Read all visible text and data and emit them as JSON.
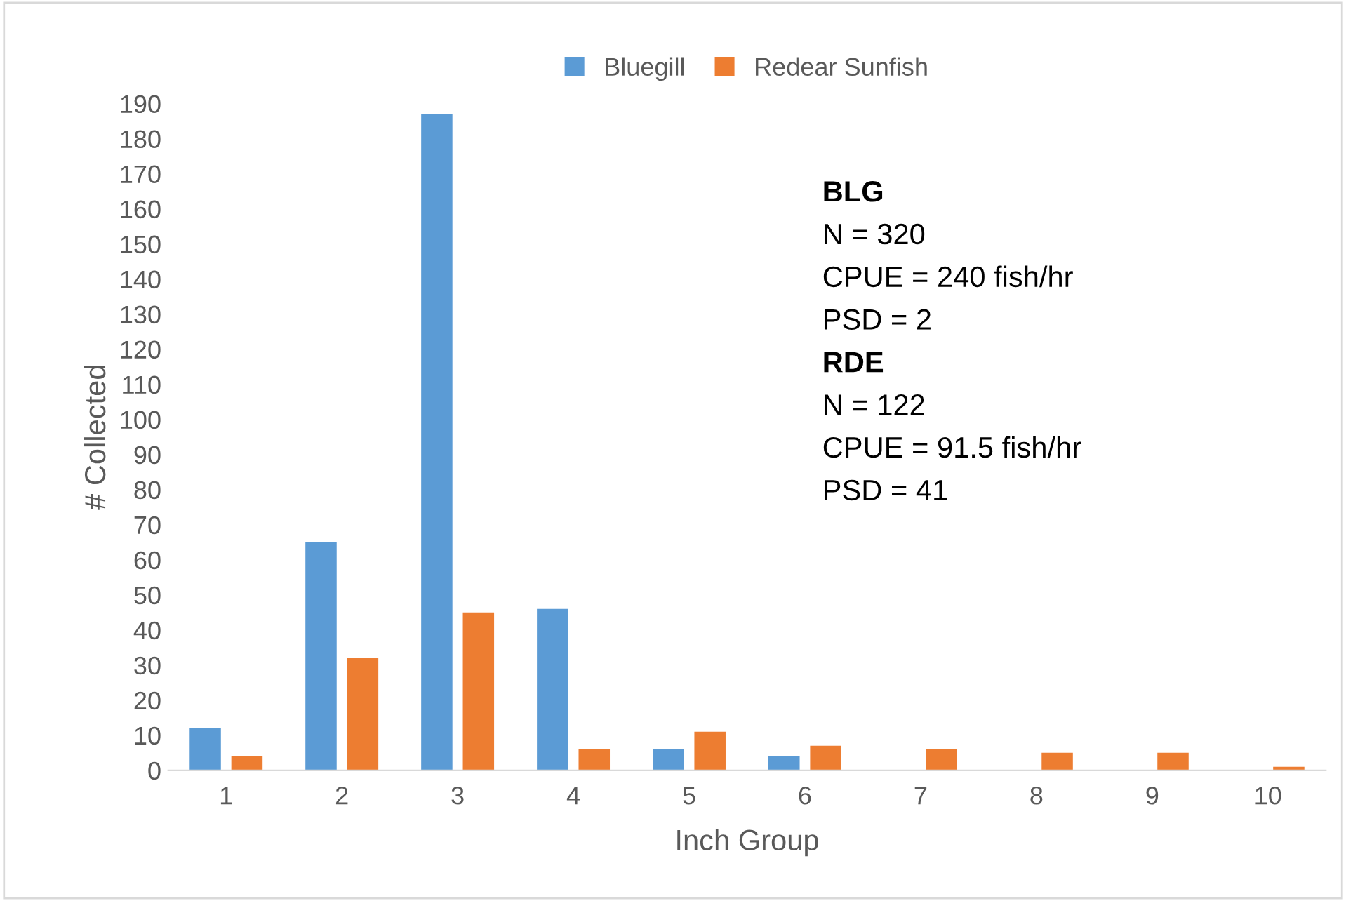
{
  "chart_data": {
    "type": "bar",
    "xlabel": "Inch Group",
    "ylabel": "# Collected",
    "categories": [
      "1",
      "2",
      "3",
      "4",
      "5",
      "6",
      "7",
      "8",
      "9",
      "10"
    ],
    "series": [
      {
        "name": "Bluegill",
        "color": "#5b9bd5",
        "values": [
          12,
          65,
          187,
          46,
          6,
          4,
          0,
          0,
          0,
          0
        ]
      },
      {
        "name": "Redear Sunfish",
        "color": "#ed7d31",
        "values": [
          4,
          32,
          45,
          6,
          11,
          7,
          6,
          5,
          5,
          1
        ]
      }
    ],
    "ylim": [
      0,
      190
    ],
    "yticks": [
      0,
      10,
      20,
      30,
      40,
      50,
      60,
      70,
      80,
      90,
      100,
      110,
      120,
      130,
      140,
      150,
      160,
      170,
      180,
      190
    ],
    "grid": false,
    "legend": "top",
    "annotations": [
      "BLG",
      "N = 320",
      "CPUE = 240 fish/hr",
      "PSD = 2",
      "RDE",
      "N = 122",
      "CPUE = 91.5 fish/hr",
      "PSD = 41"
    ]
  }
}
